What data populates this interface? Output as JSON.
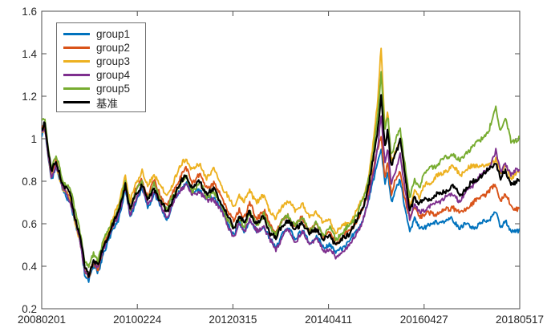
{
  "figure": {
    "background": "#ffffff",
    "axis_color": "#4d4d4d",
    "text_color": "#262626"
  },
  "chart_data": {
    "type": "line",
    "title": "",
    "xlabel": "",
    "ylabel": "",
    "grid": false,
    "legend_position": "top-left",
    "ylim": [
      0.2,
      1.6
    ],
    "xlim": [
      0,
      1
    ],
    "y_ticks": [
      0.2,
      0.4,
      0.6,
      0.8,
      1.0,
      1.2,
      1.4,
      1.6
    ],
    "y_tick_labels": [
      "0.2",
      "0.4",
      "0.6",
      "0.8",
      "1",
      "1.2",
      "1.4",
      "1.6"
    ],
    "x_tick_positions": [
      0,
      0.2,
      0.4,
      0.6,
      0.8,
      1.0
    ],
    "x_tick_labels": [
      "20080201",
      "20100224",
      "20120315",
      "20140411",
      "20160427",
      "20180517"
    ],
    "x": [
      0,
      0.006,
      0.02,
      0.03,
      0.045,
      0.06,
      0.07,
      0.08,
      0.09,
      0.098,
      0.108,
      0.118,
      0.13,
      0.15,
      0.162,
      0.175,
      0.185,
      0.197,
      0.21,
      0.222,
      0.235,
      0.25,
      0.262,
      0.275,
      0.29,
      0.302,
      0.315,
      0.33,
      0.345,
      0.36,
      0.375,
      0.39,
      0.402,
      0.413,
      0.423,
      0.435,
      0.45,
      0.465,
      0.478,
      0.49,
      0.503,
      0.515,
      0.53,
      0.545,
      0.56,
      0.575,
      0.59,
      0.602,
      0.615,
      0.63,
      0.645,
      0.66,
      0.672,
      0.682,
      0.692,
      0.702,
      0.71,
      0.718,
      0.724,
      0.731,
      0.74,
      0.75,
      0.76,
      0.77,
      0.78,
      0.79,
      0.8,
      0.82,
      0.84,
      0.86,
      0.875,
      0.89,
      0.905,
      0.92,
      0.935,
      0.95,
      0.96,
      0.97,
      0.982,
      1
    ],
    "series": [
      {
        "name": "group1",
        "color": "#0072BD",
        "y": [
          1.02,
          1.05,
          0.81,
          0.87,
          0.75,
          0.7,
          0.6,
          0.51,
          0.37,
          0.33,
          0.4,
          0.37,
          0.47,
          0.57,
          0.63,
          0.76,
          0.63,
          0.71,
          0.76,
          0.68,
          0.74,
          0.67,
          0.62,
          0.69,
          0.76,
          0.8,
          0.74,
          0.77,
          0.71,
          0.73,
          0.67,
          0.6,
          0.55,
          0.6,
          0.56,
          0.62,
          0.56,
          0.59,
          0.52,
          0.49,
          0.55,
          0.58,
          0.53,
          0.57,
          0.51,
          0.54,
          0.48,
          0.51,
          0.46,
          0.49,
          0.52,
          0.57,
          0.62,
          0.69,
          0.79,
          0.89,
          0.96,
          0.78,
          0.85,
          0.7,
          0.76,
          0.8,
          0.67,
          0.57,
          0.62,
          0.58,
          0.59,
          0.6,
          0.61,
          0.62,
          0.58,
          0.6,
          0.58,
          0.6,
          0.62,
          0.65,
          0.58,
          0.62,
          0.56,
          0.57
        ]
      },
      {
        "name": "group2",
        "color": "#D95319",
        "y": [
          1.04,
          1.06,
          0.83,
          0.89,
          0.77,
          0.72,
          0.62,
          0.53,
          0.38,
          0.34,
          0.42,
          0.39,
          0.49,
          0.6,
          0.67,
          0.8,
          0.67,
          0.76,
          0.81,
          0.73,
          0.8,
          0.73,
          0.68,
          0.75,
          0.82,
          0.86,
          0.8,
          0.83,
          0.77,
          0.79,
          0.73,
          0.66,
          0.61,
          0.67,
          0.63,
          0.69,
          0.63,
          0.66,
          0.59,
          0.56,
          0.61,
          0.64,
          0.59,
          0.63,
          0.57,
          0.6,
          0.54,
          0.56,
          0.51,
          0.54,
          0.57,
          0.62,
          0.67,
          0.74,
          0.84,
          0.94,
          1.0,
          0.82,
          0.9,
          0.74,
          0.8,
          0.85,
          0.72,
          0.62,
          0.67,
          0.64,
          0.64,
          0.65,
          0.66,
          0.68,
          0.65,
          0.68,
          0.7,
          0.73,
          0.75,
          0.78,
          0.71,
          0.74,
          0.68,
          0.67
        ]
      },
      {
        "name": "group3",
        "color": "#EDB120",
        "y": [
          1.03,
          1.06,
          0.82,
          0.88,
          0.76,
          0.71,
          0.61,
          0.52,
          0.39,
          0.35,
          0.43,
          0.41,
          0.52,
          0.63,
          0.7,
          0.83,
          0.7,
          0.79,
          0.85,
          0.77,
          0.84,
          0.77,
          0.72,
          0.8,
          0.87,
          0.91,
          0.85,
          0.88,
          0.82,
          0.85,
          0.79,
          0.72,
          0.68,
          0.74,
          0.7,
          0.76,
          0.7,
          0.73,
          0.66,
          0.62,
          0.68,
          0.71,
          0.66,
          0.7,
          0.63,
          0.66,
          0.6,
          0.62,
          0.56,
          0.59,
          0.61,
          0.66,
          0.72,
          0.8,
          0.95,
          1.15,
          1.44,
          1.05,
          1.12,
          0.88,
          0.94,
          1.0,
          0.82,
          0.68,
          0.76,
          0.72,
          0.78,
          0.81,
          0.84,
          0.87,
          0.83,
          0.86,
          0.87,
          0.88,
          0.87,
          0.91,
          0.83,
          0.87,
          0.82,
          0.85
        ]
      },
      {
        "name": "group4",
        "color": "#7E2F8E",
        "y": [
          1.03,
          1.05,
          0.82,
          0.88,
          0.76,
          0.71,
          0.61,
          0.52,
          0.38,
          0.35,
          0.42,
          0.39,
          0.49,
          0.59,
          0.65,
          0.77,
          0.64,
          0.72,
          0.77,
          0.69,
          0.75,
          0.68,
          0.63,
          0.7,
          0.76,
          0.79,
          0.73,
          0.76,
          0.7,
          0.72,
          0.66,
          0.59,
          0.54,
          0.6,
          0.56,
          0.62,
          0.56,
          0.59,
          0.52,
          0.48,
          0.54,
          0.57,
          0.52,
          0.56,
          0.5,
          0.53,
          0.47,
          0.49,
          0.44,
          0.47,
          0.5,
          0.56,
          0.62,
          0.7,
          0.82,
          0.95,
          1.11,
          0.88,
          0.96,
          0.79,
          0.85,
          0.92,
          0.76,
          0.63,
          0.69,
          0.65,
          0.67,
          0.69,
          0.72,
          0.74,
          0.71,
          0.75,
          0.79,
          0.83,
          0.86,
          0.94,
          0.84,
          0.89,
          0.83,
          0.86
        ]
      },
      {
        "name": "group5",
        "color": "#77AC30",
        "y": [
          1.08,
          1.1,
          0.86,
          0.92,
          0.8,
          0.76,
          0.66,
          0.57,
          0.43,
          0.39,
          0.46,
          0.43,
          0.53,
          0.62,
          0.68,
          0.8,
          0.67,
          0.75,
          0.8,
          0.72,
          0.78,
          0.71,
          0.66,
          0.73,
          0.79,
          0.82,
          0.76,
          0.79,
          0.73,
          0.75,
          0.69,
          0.62,
          0.57,
          0.63,
          0.59,
          0.65,
          0.6,
          0.64,
          0.58,
          0.55,
          0.61,
          0.64,
          0.59,
          0.63,
          0.57,
          0.6,
          0.55,
          0.58,
          0.53,
          0.56,
          0.59,
          0.65,
          0.71,
          0.79,
          0.92,
          1.08,
          1.3,
          1.05,
          1.12,
          0.92,
          0.98,
          1.05,
          0.88,
          0.72,
          0.8,
          0.77,
          0.84,
          0.87,
          0.9,
          0.93,
          0.89,
          0.94,
          0.97,
          1.0,
          1.03,
          1.15,
          1.04,
          1.09,
          0.98,
          1.01
        ]
      },
      {
        "name": "基准",
        "color": "#000000",
        "y": [
          1.05,
          1.08,
          0.84,
          0.9,
          0.78,
          0.73,
          0.63,
          0.54,
          0.4,
          0.36,
          0.43,
          0.4,
          0.5,
          0.6,
          0.66,
          0.79,
          0.66,
          0.74,
          0.79,
          0.71,
          0.77,
          0.7,
          0.65,
          0.72,
          0.79,
          0.83,
          0.77,
          0.8,
          0.74,
          0.76,
          0.7,
          0.63,
          0.58,
          0.64,
          0.6,
          0.66,
          0.6,
          0.63,
          0.56,
          0.53,
          0.59,
          0.62,
          0.57,
          0.61,
          0.55,
          0.58,
          0.52,
          0.55,
          0.5,
          0.53,
          0.56,
          0.62,
          0.68,
          0.76,
          0.88,
          1.02,
          1.21,
          0.96,
          1.04,
          0.86,
          0.93,
          1.0,
          0.82,
          0.66,
          0.73,
          0.69,
          0.71,
          0.73,
          0.75,
          0.77,
          0.74,
          0.77,
          0.8,
          0.83,
          0.85,
          0.89,
          0.81,
          0.85,
          0.79,
          0.8
        ]
      }
    ]
  }
}
